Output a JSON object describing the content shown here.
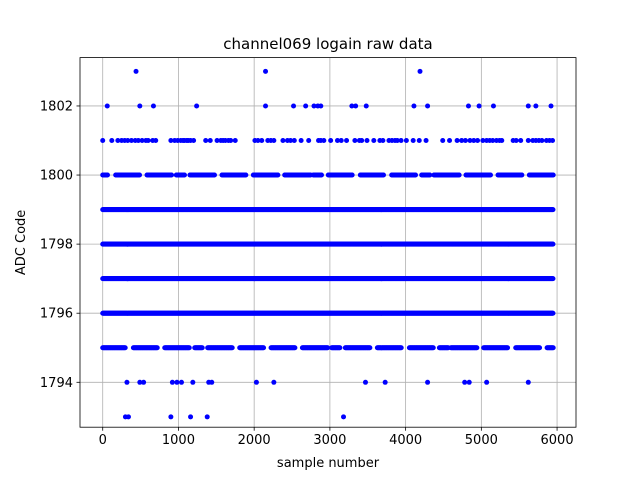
{
  "chart_data": {
    "type": "scatter",
    "title": "channel069 logain raw data",
    "xlabel": "sample number",
    "ylabel": "ADC Code",
    "xlim": [
      -300,
      6250
    ],
    "ylim": [
      1792.7,
      1803.4
    ],
    "xticks": [
      0,
      1000,
      2000,
      3000,
      4000,
      5000,
      6000
    ],
    "yticks": [
      1794,
      1796,
      1798,
      1800,
      1802
    ],
    "grid": true,
    "marker_color": "#0000ff",
    "series": [
      {
        "dense_levels": [
          1796,
          1797,
          1798,
          1799
        ],
        "medium_levels": [
          1795,
          1800
        ],
        "medium_range": [
          0,
          5950
        ],
        "sparse_points": [
          {
            "y": 1803,
            "x": [
              440,
              2150,
              4190
            ]
          },
          {
            "y": 1802,
            "x": [
              60,
              490,
              670,
              1240,
              2150,
              2520,
              2680,
              2790,
              2840,
              2880,
              3290,
              3340,
              3480,
              4110,
              4290,
              4830,
              4970,
              5160,
              5620,
              5720,
              5920
            ]
          },
          {
            "y": 1801,
            "x": [
              0,
              120,
              200,
              250,
              290,
              330,
              380,
              430,
              470,
              520,
              570,
              600,
              660,
              700,
              900,
              950,
              990,
              1030,
              1060,
              1080,
              1110,
              1130,
              1160,
              1200,
              1360,
              1420,
              1510,
              1560,
              1590,
              1620,
              1660,
              1690,
              1750,
              2010,
              2050,
              2100,
              2180,
              2220,
              2260,
              2380,
              2440,
              2480,
              2530,
              2620,
              2720,
              2850,
              2880,
              2920,
              3010,
              3100,
              3150,
              3220,
              3330,
              3390,
              3420,
              3490,
              3580,
              3660,
              3700,
              3780,
              3820,
              3860,
              3890,
              3940,
              4010,
              4100,
              4180,
              4270,
              4490,
              4580,
              4680,
              4740,
              4790,
              4850,
              4900,
              4950,
              5020,
              5070,
              5110,
              5150,
              5200,
              5240,
              5270,
              5420,
              5460,
              5520,
              5620,
              5680,
              5720,
              5760,
              5800,
              5860,
              5900,
              5940
            ]
          },
          {
            "y": 1794,
            "x": [
              320,
              490,
              540,
              920,
              980,
              1040,
              1190,
              1400,
              1440,
              2030,
              2260,
              3470,
              3730,
              4290,
              4780,
              4840,
              5070,
              5620
            ]
          },
          {
            "y": 1793,
            "x": [
              300,
              340,
              900,
              1160,
              1380,
              3180
            ]
          }
        ]
      }
    ]
  }
}
